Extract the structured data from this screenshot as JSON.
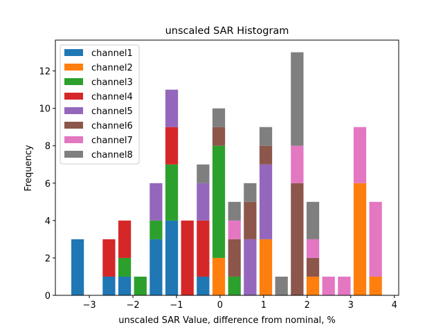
{
  "chart_data": {
    "type": "bar",
    "stacked": true,
    "title": "unscaled SAR Histogram",
    "xlabel": "unscaled SAR Value, difference from nominal, %",
    "ylabel": "Frequency",
    "xlim": [
      -3.78,
      4.1
    ],
    "ylim": [
      0,
      13.65
    ],
    "xticks": [
      -3,
      -2,
      -1,
      0,
      1,
      2,
      3,
      4
    ],
    "xtick_labels": [
      "−3",
      "−2",
      "−1",
      "0",
      "1",
      "2",
      "3",
      "4"
    ],
    "yticks": [
      0,
      2,
      4,
      6,
      8,
      10,
      12
    ],
    "ytick_labels": [
      "0",
      "2",
      "4",
      "6",
      "8",
      "10",
      "12"
    ],
    "grid": false,
    "legend_position": "top-left",
    "bin_centers": [
      -3.27,
      -2.91,
      -2.55,
      -2.19,
      -1.83,
      -1.47,
      -1.11,
      -0.75,
      -0.39,
      -0.03,
      0.33,
      0.69,
      1.05,
      1.41,
      1.77,
      2.13,
      2.49,
      2.85,
      3.21,
      3.57
    ],
    "bar_width": 0.29,
    "series": [
      {
        "name": "channel1",
        "color": "#1f77b4",
        "values": [
          3,
          0,
          1,
          1,
          0,
          3,
          4,
          0,
          1,
          0,
          0,
          0,
          0,
          0,
          0,
          0,
          0,
          0,
          0,
          0
        ]
      },
      {
        "name": "channel2",
        "color": "#ff7f0e",
        "values": [
          0,
          0,
          0,
          0,
          0,
          0,
          0,
          0,
          0,
          2,
          0,
          0,
          3,
          0,
          0,
          1,
          0,
          0,
          6,
          1
        ]
      },
      {
        "name": "channel3",
        "color": "#2ca02c",
        "values": [
          0,
          0,
          0,
          1,
          1,
          1,
          3,
          0,
          0,
          6,
          1,
          0,
          0,
          0,
          0,
          0,
          0,
          0,
          0,
          0
        ]
      },
      {
        "name": "channel4",
        "color": "#d62728",
        "values": [
          0,
          0,
          2,
          2,
          0,
          0,
          2,
          4,
          3,
          0,
          0,
          0,
          0,
          0,
          0,
          0,
          0,
          0,
          0,
          0
        ]
      },
      {
        "name": "channel5",
        "color": "#9467bd",
        "values": [
          0,
          0,
          0,
          0,
          0,
          2,
          2,
          0,
          2,
          0,
          0,
          3,
          4,
          0,
          0,
          0,
          0,
          0,
          0,
          0
        ]
      },
      {
        "name": "channel6",
        "color": "#8c564b",
        "values": [
          0,
          0,
          0,
          0,
          0,
          0,
          0,
          0,
          0,
          1,
          2,
          2,
          1,
          0,
          6,
          1,
          0,
          0,
          0,
          0
        ]
      },
      {
        "name": "channel7",
        "color": "#e377c2",
        "values": [
          0,
          0,
          0,
          0,
          0,
          0,
          0,
          0,
          0,
          0,
          1,
          0,
          0,
          0,
          2,
          1,
          1,
          1,
          3,
          4
        ]
      },
      {
        "name": "channel8",
        "color": "#7f7f7f",
        "values": [
          0,
          0,
          0,
          0,
          0,
          0,
          0,
          0,
          1,
          1,
          1,
          1,
          1,
          1,
          5,
          2,
          0,
          0,
          0,
          0
        ]
      }
    ]
  }
}
